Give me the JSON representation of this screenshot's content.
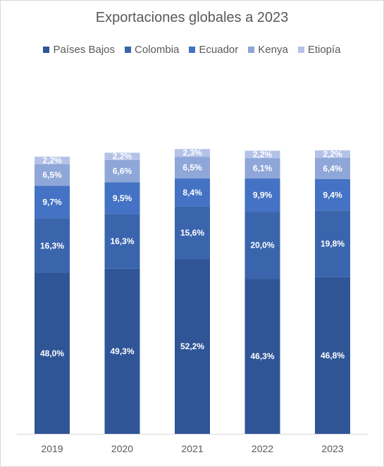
{
  "chart_data": {
    "type": "bar",
    "stacked": true,
    "title": "Exportaciones globales a 2023",
    "categories": [
      "2019",
      "2020",
      "2021",
      "2022",
      "2023"
    ],
    "ylim": [
      0,
      100
    ],
    "legend_position": "top",
    "grid": false,
    "series": [
      {
        "name": "Países Bajos",
        "color": "#2f5597",
        "label_color": "#ffffff",
        "values": [
          48.0,
          49.3,
          52.2,
          46.3,
          46.8
        ],
        "labels": [
          "48,0%",
          "49,3%",
          "52,2%",
          "46,3%",
          "46,8%"
        ]
      },
      {
        "name": "Colombia",
        "color": "#3a65ad",
        "label_color": "#ffffff",
        "values": [
          16.3,
          16.3,
          15.6,
          20.0,
          19.8
        ],
        "labels": [
          "16,3%",
          "16,3%",
          "15,6%",
          "20,0%",
          "19,8%"
        ]
      },
      {
        "name": "Ecuador",
        "color": "#4472c4",
        "label_color": "#ffffff",
        "values": [
          9.7,
          9.5,
          8.4,
          9.9,
          9.4
        ],
        "labels": [
          "9,7%",
          "9,5%",
          "8,4%",
          "9,9%",
          "9,4%"
        ]
      },
      {
        "name": "Kenya",
        "color": "#8fa6d8",
        "label_color": "#ffffff",
        "values": [
          6.5,
          6.6,
          6.5,
          6.1,
          6.4
        ],
        "labels": [
          "6,5%",
          "6,6%",
          "6,5%",
          "6,1%",
          "6,4%"
        ]
      },
      {
        "name": "Etiopía",
        "color": "#b4c2e8",
        "label_color": "#ffffff",
        "values": [
          2.2,
          2.2,
          2.3,
          2.2,
          2.2
        ],
        "labels": [
          "2,2%",
          "2,2%",
          "2,3%",
          "2,2%",
          "2,2%"
        ]
      }
    ]
  }
}
